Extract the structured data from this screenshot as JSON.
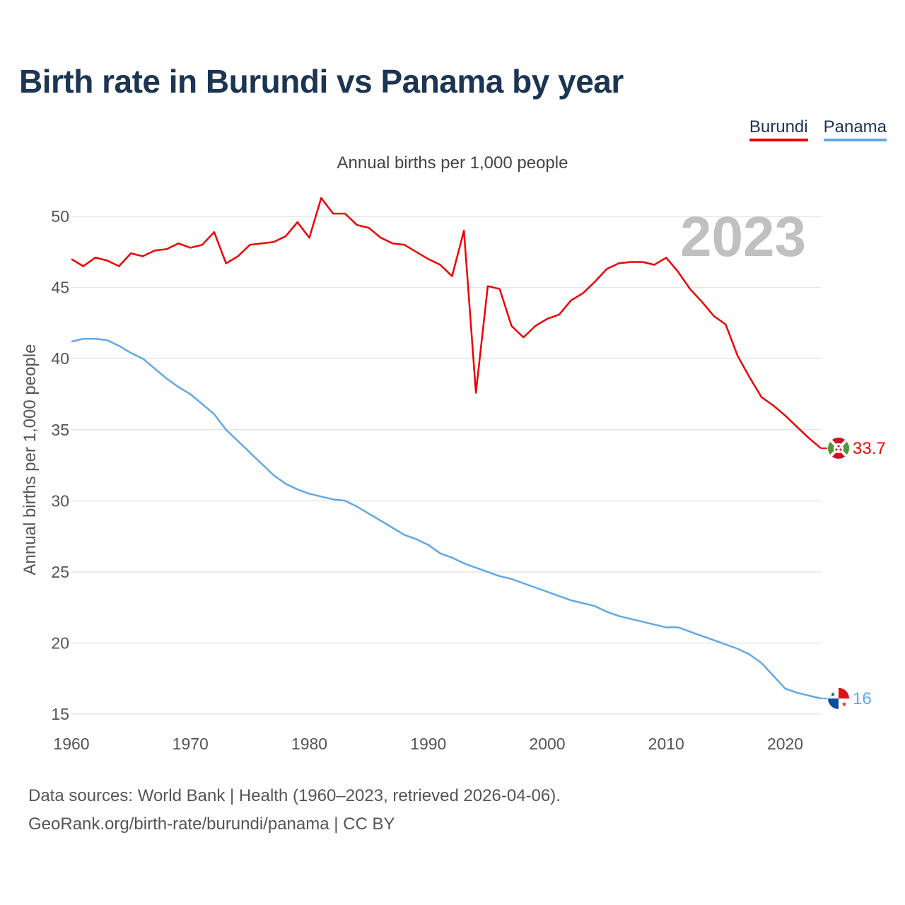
{
  "title": "Birth rate in Burundi vs Panama by year",
  "subtitle": "Annual births per 1,000 people",
  "source_line1": "Data sources: World Bank | Health (1960–2023, retrieved 2026-04-06).",
  "source_line2": "GeoRank.org/birth-rate/burundi/panama | CC BY",
  "legend": [
    {
      "name": "Burundi",
      "color": "#ee0000"
    },
    {
      "name": "Panama",
      "color": "#62a8e8"
    }
  ],
  "chart_data": {
    "type": "line",
    "title": "Birth rate in Burundi vs Panama by year",
    "xlabel": "",
    "ylabel": "Annual births per 1,000 people",
    "xlim": [
      1960,
      2023
    ],
    "ylim": [
      15,
      51
    ],
    "x_ticks": [
      1960,
      1970,
      1980,
      1990,
      2000,
      2010,
      2020
    ],
    "y_ticks": [
      15,
      20,
      25,
      30,
      35,
      40,
      45,
      50
    ],
    "grid": true,
    "year_badge": "2023",
    "x": [
      1960,
      1961,
      1962,
      1963,
      1964,
      1965,
      1966,
      1967,
      1968,
      1969,
      1970,
      1971,
      1972,
      1973,
      1974,
      1975,
      1976,
      1977,
      1978,
      1979,
      1980,
      1981,
      1982,
      1983,
      1984,
      1985,
      1986,
      1987,
      1988,
      1989,
      1990,
      1991,
      1992,
      1993,
      1994,
      1995,
      1996,
      1997,
      1998,
      1999,
      2000,
      2001,
      2002,
      2003,
      2004,
      2005,
      2006,
      2007,
      2008,
      2009,
      2010,
      2011,
      2012,
      2013,
      2014,
      2015,
      2016,
      2017,
      2018,
      2019,
      2020,
      2021,
      2022,
      2023
    ],
    "series": [
      {
        "name": "Burundi",
        "color": "#ee0000",
        "end_label": "33.7",
        "values": [
          47.0,
          46.5,
          47.1,
          46.9,
          46.5,
          47.4,
          47.2,
          47.6,
          47.7,
          48.1,
          47.8,
          48.0,
          48.9,
          46.7,
          47.2,
          48.0,
          48.1,
          48.2,
          48.6,
          49.6,
          48.5,
          51.3,
          50.2,
          50.2,
          49.4,
          49.2,
          48.5,
          48.1,
          48.0,
          47.5,
          47.0,
          46.6,
          45.8,
          49.0,
          37.6,
          45.1,
          44.9,
          42.3,
          41.5,
          42.3,
          42.8,
          43.1,
          44.1,
          44.6,
          45.4,
          46.3,
          46.7,
          46.8,
          46.8,
          46.6,
          47.1,
          46.1,
          44.9,
          44.0,
          43.0,
          42.4,
          40.2,
          38.7,
          37.3,
          36.7,
          36.0,
          35.2,
          34.4,
          33.7
        ]
      },
      {
        "name": "Panama",
        "color": "#62a8e8",
        "end_label": "16",
        "values": [
          41.2,
          41.4,
          41.4,
          41.3,
          40.9,
          40.4,
          40.0,
          39.3,
          38.6,
          38.0,
          37.5,
          36.8,
          36.1,
          35.0,
          34.2,
          33.4,
          32.6,
          31.8,
          31.2,
          30.8,
          30.5,
          30.3,
          30.1,
          30.0,
          29.6,
          29.1,
          28.6,
          28.1,
          27.6,
          27.3,
          26.9,
          26.3,
          26.0,
          25.6,
          25.3,
          25.0,
          24.7,
          24.5,
          24.2,
          23.9,
          23.6,
          23.3,
          23.0,
          22.8,
          22.6,
          22.2,
          21.9,
          21.7,
          21.5,
          21.3,
          21.1,
          21.1,
          20.8,
          20.5,
          20.2,
          19.9,
          19.6,
          19.2,
          18.6,
          17.7,
          16.8,
          16.5,
          16.3,
          16.1
        ]
      }
    ]
  }
}
